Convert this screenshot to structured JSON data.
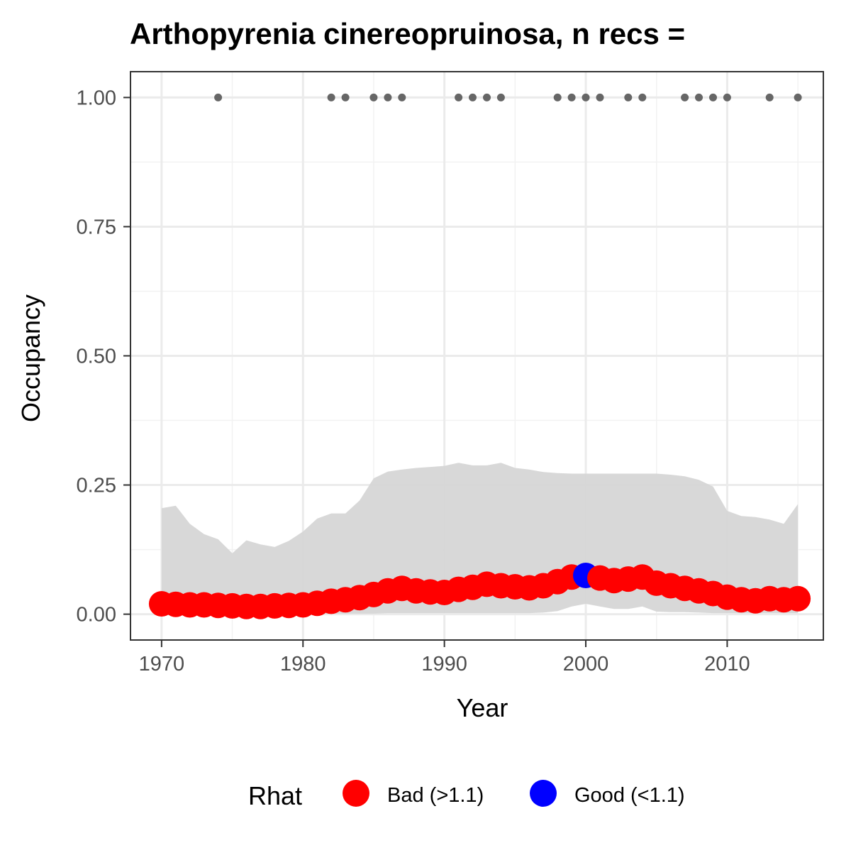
{
  "chart_data": {
    "type": "line",
    "title": "Arthopyrenia cinereopruinosa, n recs =",
    "xlabel": "Year",
    "ylabel": "Occupancy",
    "xlim": [
      1967.8,
      2016.8
    ],
    "ylim": [
      -0.05,
      1.05
    ],
    "x_ticks": [
      "1970",
      "1980",
      "1990",
      "2000",
      "2010"
    ],
    "y_ticks": [
      "0.00",
      "0.25",
      "0.50",
      "0.75",
      "1.00"
    ],
    "x_tick_values": [
      1970,
      1980,
      1990,
      2000,
      2010
    ],
    "y_tick_values": [
      0.0,
      0.25,
      0.5,
      0.75,
      1.0
    ],
    "grid": true,
    "legend": {
      "title": "Rhat",
      "position": "bottom",
      "entries": [
        {
          "label": "Bad (>1.1)",
          "color": "#ff0000"
        },
        {
          "label": "Good (<1.1)",
          "color": "#0000ff"
        }
      ]
    },
    "ribbon_color": "#d6d6d6",
    "record_point_color": "#666666",
    "years": [
      1970,
      1971,
      1972,
      1973,
      1974,
      1975,
      1976,
      1977,
      1978,
      1979,
      1980,
      1981,
      1982,
      1983,
      1984,
      1985,
      1986,
      1987,
      1988,
      1989,
      1990,
      1991,
      1992,
      1993,
      1994,
      1995,
      1996,
      1997,
      1998,
      1999,
      2000,
      2001,
      2002,
      2003,
      2004,
      2005,
      2006,
      2007,
      2008,
      2009,
      2010,
      2011,
      2012,
      2013,
      2014,
      2015
    ],
    "occupancy_mean": [
      0.02,
      0.019,
      0.018,
      0.018,
      0.017,
      0.016,
      0.015,
      0.015,
      0.016,
      0.017,
      0.018,
      0.021,
      0.025,
      0.028,
      0.032,
      0.038,
      0.045,
      0.05,
      0.045,
      0.043,
      0.042,
      0.048,
      0.052,
      0.058,
      0.055,
      0.053,
      0.051,
      0.055,
      0.063,
      0.072,
      0.075,
      0.07,
      0.065,
      0.068,
      0.072,
      0.06,
      0.055,
      0.05,
      0.045,
      0.04,
      0.033,
      0.028,
      0.026,
      0.03,
      0.028,
      0.03
    ],
    "lower_ci": [
      0.001,
      0.001,
      0.001,
      0.001,
      0.001,
      0.001,
      0.001,
      0.001,
      0.001,
      0.001,
      0.001,
      0.001,
      0.001,
      0.001,
      0.001,
      0.001,
      0.002,
      0.002,
      0.002,
      0.002,
      0.002,
      0.002,
      0.002,
      0.002,
      0.002,
      0.002,
      0.002,
      0.003,
      0.006,
      0.015,
      0.02,
      0.015,
      0.01,
      0.01,
      0.015,
      0.005,
      0.004,
      0.004,
      0.003,
      0.002,
      0.002,
      0.002,
      0.002,
      0.002,
      0.002,
      0.002
    ],
    "upper_ci": [
      0.205,
      0.21,
      0.175,
      0.155,
      0.145,
      0.118,
      0.143,
      0.135,
      0.13,
      0.142,
      0.16,
      0.185,
      0.195,
      0.195,
      0.22,
      0.263,
      0.276,
      0.28,
      0.283,
      0.285,
      0.287,
      0.293,
      0.288,
      0.288,
      0.293,
      0.283,
      0.28,
      0.275,
      0.273,
      0.272,
      0.272,
      0.272,
      0.272,
      0.272,
      0.272,
      0.272,
      0.27,
      0.267,
      0.26,
      0.247,
      0.2,
      0.19,
      0.188,
      0.183,
      0.175,
      0.213
    ],
    "rhat_status": [
      "bad",
      "bad",
      "bad",
      "bad",
      "bad",
      "bad",
      "bad",
      "bad",
      "bad",
      "bad",
      "bad",
      "bad",
      "bad",
      "bad",
      "bad",
      "bad",
      "bad",
      "bad",
      "bad",
      "bad",
      "bad",
      "bad",
      "bad",
      "bad",
      "bad",
      "bad",
      "bad",
      "bad",
      "bad",
      "bad",
      "good",
      "bad",
      "bad",
      "bad",
      "bad",
      "bad",
      "bad",
      "bad",
      "bad",
      "bad",
      "bad",
      "bad",
      "bad",
      "bad",
      "bad",
      "bad"
    ],
    "record_years": [
      1974,
      1982,
      1983,
      1985,
      1986,
      1987,
      1991,
      1992,
      1993,
      1994,
      1998,
      1999,
      2000,
      2001,
      2003,
      2004,
      2007,
      2008,
      2009,
      2010,
      2013,
      2015
    ],
    "record_value": 1.0
  }
}
